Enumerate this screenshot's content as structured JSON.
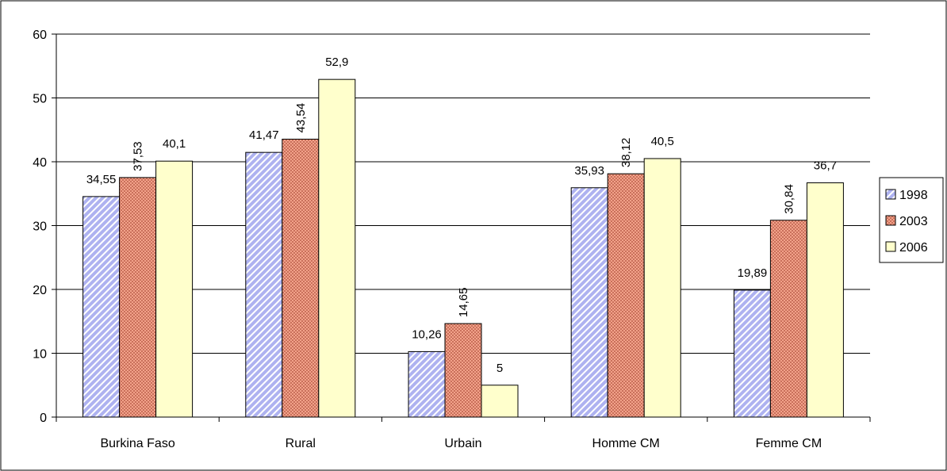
{
  "chart_data": {
    "type": "bar",
    "categories": [
      "Burkina Faso",
      "Rural",
      "Urbain",
      "Homme CM",
      "Femme CM"
    ],
    "series": [
      {
        "name": "1998",
        "values": [
          34.55,
          41.47,
          10.26,
          35.93,
          19.89
        ],
        "labels": [
          "34,55",
          "41,47",
          "10,26",
          "35,93",
          "19,89"
        ],
        "label_rotated": [
          false,
          false,
          false,
          false,
          false
        ]
      },
      {
        "name": "2003",
        "values": [
          37.53,
          43.54,
          14.65,
          38.12,
          30.84
        ],
        "labels": [
          "37,53",
          "43,54",
          "14,65",
          "38,12",
          "30,84"
        ],
        "label_rotated": [
          true,
          true,
          true,
          true,
          true
        ]
      },
      {
        "name": "2006",
        "values": [
          40.1,
          52.9,
          5,
          40.5,
          36.7
        ],
        "labels": [
          "40,1",
          "52,9",
          "5",
          "40,5",
          "36,7"
        ],
        "label_rotated": [
          false,
          false,
          false,
          false,
          false
        ]
      }
    ],
    "series_styles": [
      {
        "fill": "#aeb2f0",
        "stripe": "#ffffff",
        "pattern": "diagonal-hatch"
      },
      {
        "fill": "#f2a28a",
        "stripe": "#b85a45",
        "pattern": "checker"
      },
      {
        "fill": "#ffffcc",
        "stripe": "#ffffcc",
        "pattern": "solid"
      }
    ],
    "ylim": [
      0,
      60
    ],
    "yticks": [
      0,
      10,
      20,
      30,
      40,
      50,
      60
    ],
    "grid": true,
    "legend": "right",
    "title": "",
    "xlabel": "",
    "ylabel": ""
  }
}
